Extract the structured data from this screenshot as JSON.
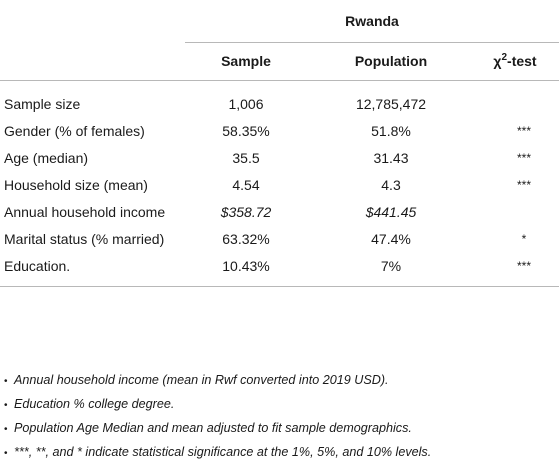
{
  "table": {
    "country": "Rwanda",
    "columns": [
      "Sample",
      "Population",
      "χ",
      "2",
      "-test"
    ],
    "rows": [
      {
        "label": "Sample size",
        "sample": "1,006",
        "population": "12,785,472",
        "sig": ""
      },
      {
        "label": "Gender (% of females)",
        "sample": "58.35%",
        "population": "51.8%",
        "sig": "***"
      },
      {
        "label": "Age (median)",
        "sample": "35.5",
        "population": "31.43",
        "sig": "***"
      },
      {
        "label": "Household size (mean)",
        "sample": "4.54",
        "population": "4.3",
        "sig": "***"
      },
      {
        "label": "Annual household income",
        "sample": "$358.72",
        "population": "$441.45",
        "sig": ""
      },
      {
        "label": "Marital status (% married)",
        "sample": "63.32%",
        "population": "47.4%",
        "sig": "*"
      },
      {
        "label": "Education.",
        "sample": "10.43%",
        "population": "7%",
        "sig": "***"
      }
    ]
  },
  "notes": [
    "Annual household income (mean in Rwf converted into 2019 USD).",
    "Education % college degree.",
    "Population Age Median and mean adjusted to fit sample demographics.",
    "***, **, and * indicate statistical significance at the 1%, 5%, and 10% levels."
  ],
  "bullet_glyph": "•"
}
